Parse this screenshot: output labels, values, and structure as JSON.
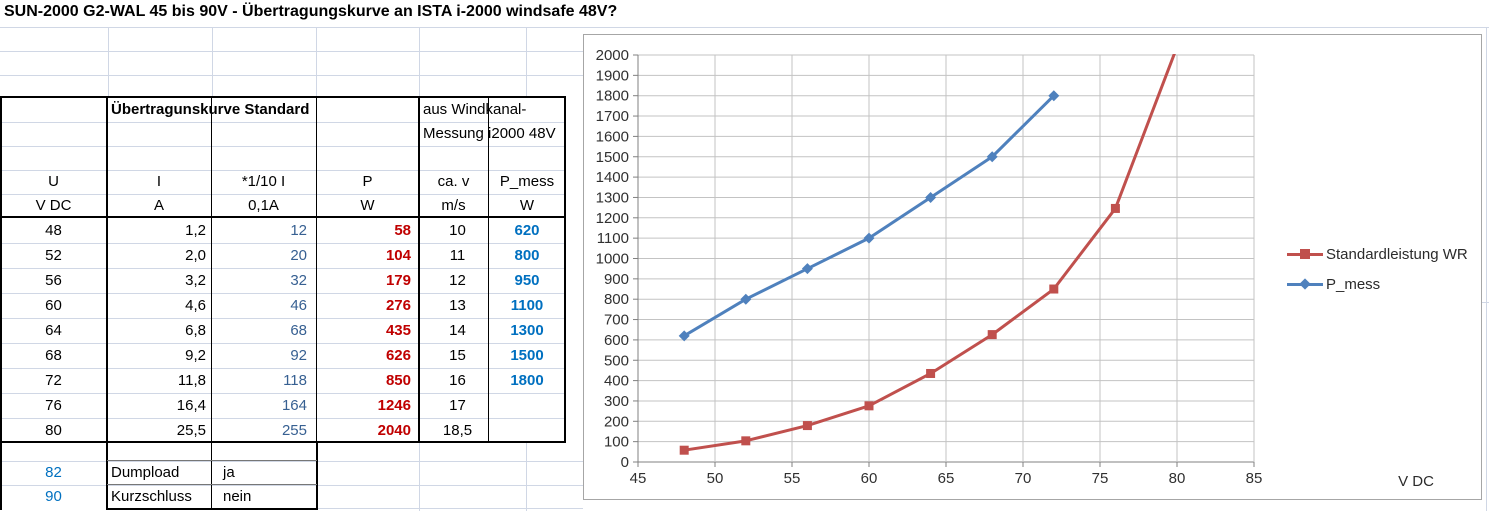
{
  "title": "SUN-2000 G2-WAL 45 bis 90V - Übertragungskurve an ISTA i-2000 windsafe 48V?",
  "table": {
    "group_header_standard": "Übertragunskurve Standard",
    "group_header_windkanal_line1": "aus Windkanal-",
    "group_header_windkanal_line2": "Messung i2000 48V",
    "columns": [
      {
        "name": "U",
        "unit": "V DC"
      },
      {
        "name": "I",
        "unit": "A"
      },
      {
        "name": "*1/10 I",
        "unit": "0,1A"
      },
      {
        "name": "P",
        "unit": "W"
      },
      {
        "name": "ca. v",
        "unit": "m/s"
      },
      {
        "name": "P_mess",
        "unit": "W"
      }
    ],
    "rows": [
      {
        "u": "48",
        "i": "1,2",
        "i10": "12",
        "p": "58",
        "v": "10",
        "pmess": "620"
      },
      {
        "u": "52",
        "i": "2,0",
        "i10": "20",
        "p": "104",
        "v": "11",
        "pmess": "800"
      },
      {
        "u": "56",
        "i": "3,2",
        "i10": "32",
        "p": "179",
        "v": "12",
        "pmess": "950"
      },
      {
        "u": "60",
        "i": "4,6",
        "i10": "46",
        "p": "276",
        "v": "13",
        "pmess": "1100"
      },
      {
        "u": "64",
        "i": "6,8",
        "i10": "68",
        "p": "435",
        "v": "14",
        "pmess": "1300"
      },
      {
        "u": "68",
        "i": "9,2",
        "i10": "92",
        "p": "626",
        "v": "15",
        "pmess": "1500"
      },
      {
        "u": "72",
        "i": "11,8",
        "i10": "118",
        "p": "850",
        "v": "16",
        "pmess": "1800"
      },
      {
        "u": "76",
        "i": "16,4",
        "i10": "164",
        "p": "1246",
        "v": "17",
        "pmess": ""
      },
      {
        "u": "80",
        "i": "25,5",
        "i10": "255",
        "p": "2040",
        "v": "18,5",
        "pmess": ""
      }
    ],
    "extra_rows": [
      {
        "u": "82",
        "label": "Dumpload",
        "value": "ja"
      },
      {
        "u": "90",
        "label": "Kurzschluss",
        "value": "nein"
      }
    ]
  },
  "colors": {
    "p_text": "#C00000",
    "i10_text": "#376092",
    "pmess_text": "#0070C0",
    "extra_u_text": "#0070C0",
    "grid_faint": "#D0D7E5",
    "chart_gridline": "#C3C3C3",
    "chart_axis": "#808080",
    "chart_label": "#303030"
  },
  "chart_data": {
    "type": "line",
    "x": [
      48,
      52,
      56,
      60,
      64,
      68,
      72,
      76,
      80
    ],
    "series": [
      {
        "name": "Standardleistung WR",
        "color": "#C0504D",
        "marker": "square",
        "values": [
          58,
          104,
          179,
          276,
          435,
          626,
          850,
          1246,
          2040
        ]
      },
      {
        "name": "P_mess",
        "color": "#4F81BD",
        "marker": "diamond",
        "values": [
          620,
          800,
          950,
          1100,
          1300,
          1500,
          1800
        ]
      }
    ],
    "title": "",
    "xlabel": "V DC",
    "ylabel": "",
    "xlim": [
      45,
      85
    ],
    "xstep": 5,
    "ylim": [
      0,
      2000
    ],
    "ystep": 100,
    "grid": true,
    "legend_position": "right"
  }
}
